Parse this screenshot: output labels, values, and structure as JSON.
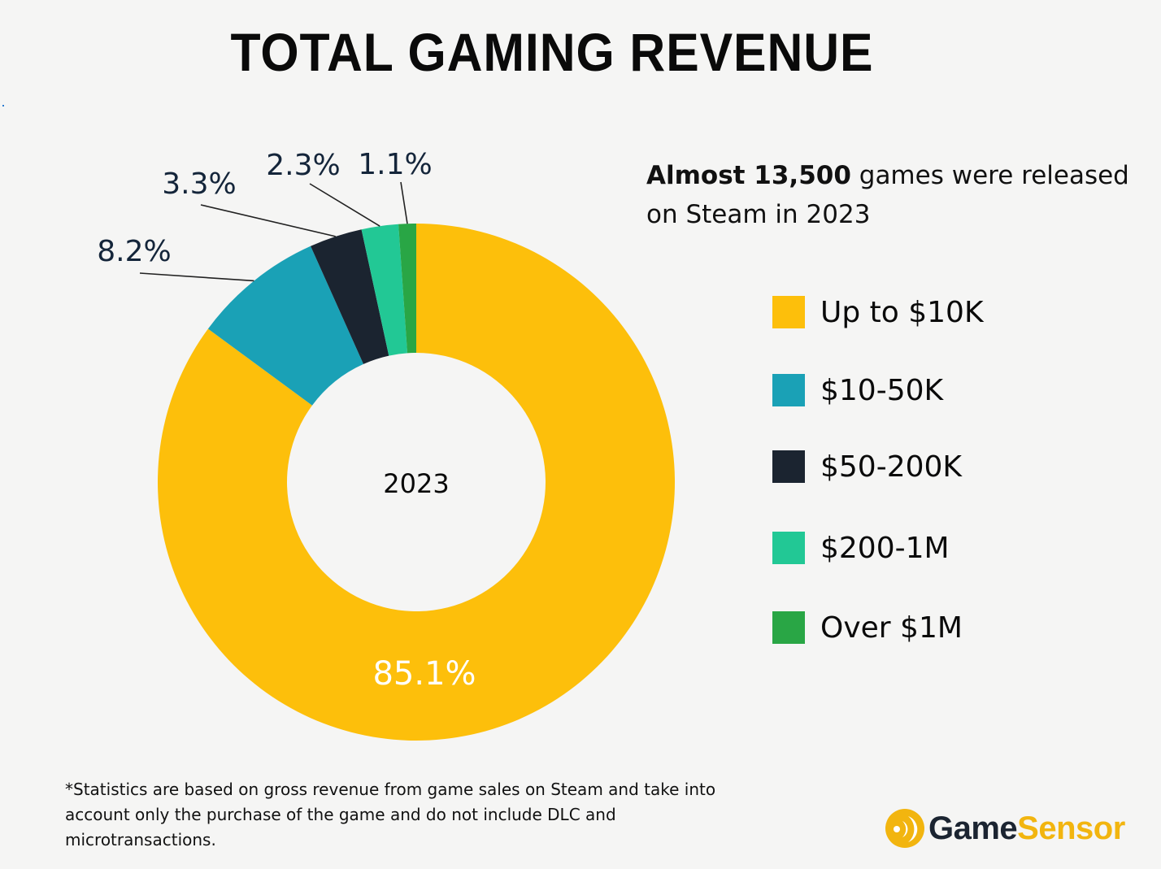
{
  "header": {
    "title": "TOTAL GAMING REVENUE"
  },
  "note": {
    "bold": "Almost 13,500",
    "rest": " games were released on Steam in 2023"
  },
  "footnote": "*Statistics are based on gross revenue from game sales on Steam and take into account only the purchase of the game and do not include DLC and microtransactions.",
  "brand": {
    "icon": "gamesensor-logo-icon",
    "part1": "Game",
    "part2": "Sensor",
    "color_dark": "#1b2431",
    "color_accent": "#f2b50f"
  },
  "chart_data": {
    "type": "pie",
    "variant": "donut",
    "title": "TOTAL GAMING REVENUE",
    "center_label": "2023",
    "legend_position": "right",
    "categories": [
      "Up to $10K",
      "$10-50K",
      "$50-200K",
      "$200-1M",
      "Over $1M"
    ],
    "values": [
      85.1,
      8.2,
      3.3,
      2.3,
      1.1
    ],
    "labels": [
      "85.1%",
      "8.2%",
      "3.3%",
      "2.3%",
      "1.1%"
    ],
    "colors": [
      "#fdbf0b",
      "#1aa1b6",
      "#1b2430",
      "#22c895",
      "#29a645"
    ],
    "unit": "%"
  }
}
